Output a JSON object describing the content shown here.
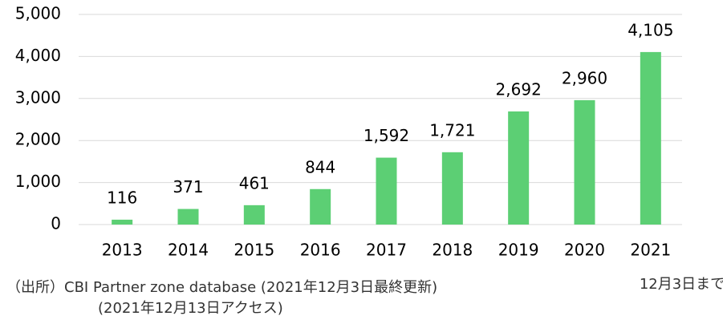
{
  "chart_data": {
    "type": "bar",
    "categories": [
      "2013",
      "2014",
      "2015",
      "2016",
      "2017",
      "2018",
      "2019",
      "2020",
      "2021"
    ],
    "values": [
      116,
      371,
      461,
      844,
      1592,
      1721,
      2692,
      2960,
      4105
    ],
    "value_labels": [
      "116",
      "371",
      "461",
      "844",
      "1,592",
      "1,721",
      "2,692",
      "2,960",
      "4,105"
    ],
    "color": "#5ccf74",
    "ylim": [
      0,
      5000
    ],
    "yticks": [
      0,
      {
        "value": 1000,
        "label": "1,000"
      },
      {
        "value": 2000,
        "label": "2,000"
      },
      {
        "value": 3000,
        "label": "3,000"
      },
      {
        "value": 4000,
        "label": "4,000"
      },
      {
        "value": 5000,
        "label": "5,000"
      }
    ],
    "grid": true,
    "annotation": "12月3日まで",
    "source": [
      "（出所）CBI  Partner zone database (2021年12月3日最終更新)",
      "(2021年12月13日アクセス)"
    ]
  }
}
